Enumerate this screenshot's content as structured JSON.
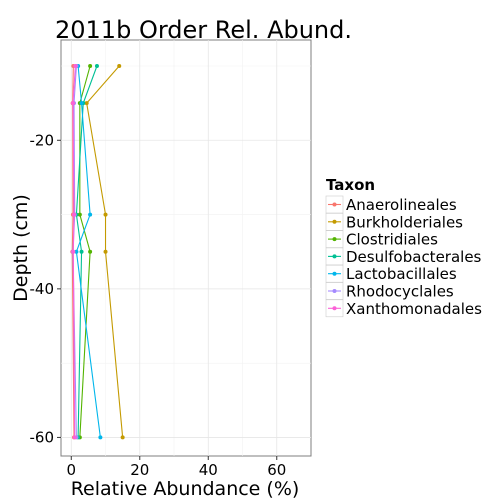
{
  "chart_data": {
    "type": "line",
    "title": "2011b Order Rel. Abund.",
    "xlabel": "Relative Abundance (%)",
    "ylabel": "Depth (cm)",
    "xlim": [
      -3,
      70
    ],
    "ylim": [
      -62.5,
      -6.5
    ],
    "x_ticks": [
      0,
      20,
      40,
      60
    ],
    "y_ticks": [
      -20,
      -40,
      -60
    ],
    "grid": true,
    "legend_title": "Taxon",
    "legend_position": "right",
    "series": [
      {
        "name": "Anaerolineales",
        "color": "#F8766D",
        "points": [
          [
            0.6,
            -10
          ],
          [
            0.4,
            -15
          ],
          [
            0.5,
            -30
          ],
          [
            0.3,
            -35
          ],
          [
            0.8,
            -60
          ]
        ]
      },
      {
        "name": "Burkholderiales",
        "color": "#C49A00",
        "points": [
          [
            14,
            -10
          ],
          [
            4.5,
            -15
          ],
          [
            10,
            -30
          ],
          [
            10,
            -35
          ],
          [
            15,
            -60
          ]
        ]
      },
      {
        "name": "Clostridiales",
        "color": "#53B400",
        "points": [
          [
            5.5,
            -10
          ],
          [
            2.5,
            -15
          ],
          [
            2.5,
            -30
          ],
          [
            5.5,
            -35
          ],
          [
            2.5,
            -60
          ]
        ]
      },
      {
        "name": "Desulfobacterales",
        "color": "#00C094",
        "points": [
          [
            7.5,
            -10
          ],
          [
            3.5,
            -15
          ],
          [
            1.5,
            -30
          ],
          [
            3,
            -35
          ],
          [
            2,
            -60
          ]
        ]
      },
      {
        "name": "Lactobacillales",
        "color": "#00B6EB",
        "points": [
          [
            2,
            -10
          ],
          [
            3,
            -15
          ],
          [
            5.5,
            -30
          ],
          [
            1.5,
            -35
          ],
          [
            8.5,
            -60
          ]
        ]
      },
      {
        "name": "Rhodocyclales",
        "color": "#A58AFF",
        "points": [
          [
            1.5,
            -10
          ],
          [
            0.8,
            -15
          ],
          [
            1,
            -30
          ],
          [
            0.5,
            -35
          ],
          [
            1.5,
            -60
          ]
        ]
      },
      {
        "name": "Xanthomonadales",
        "color": "#FB61D7",
        "points": [
          [
            1.2,
            -10
          ],
          [
            0.5,
            -15
          ],
          [
            0.8,
            -30
          ],
          [
            0.6,
            -35
          ],
          [
            1,
            -60
          ]
        ]
      }
    ]
  }
}
